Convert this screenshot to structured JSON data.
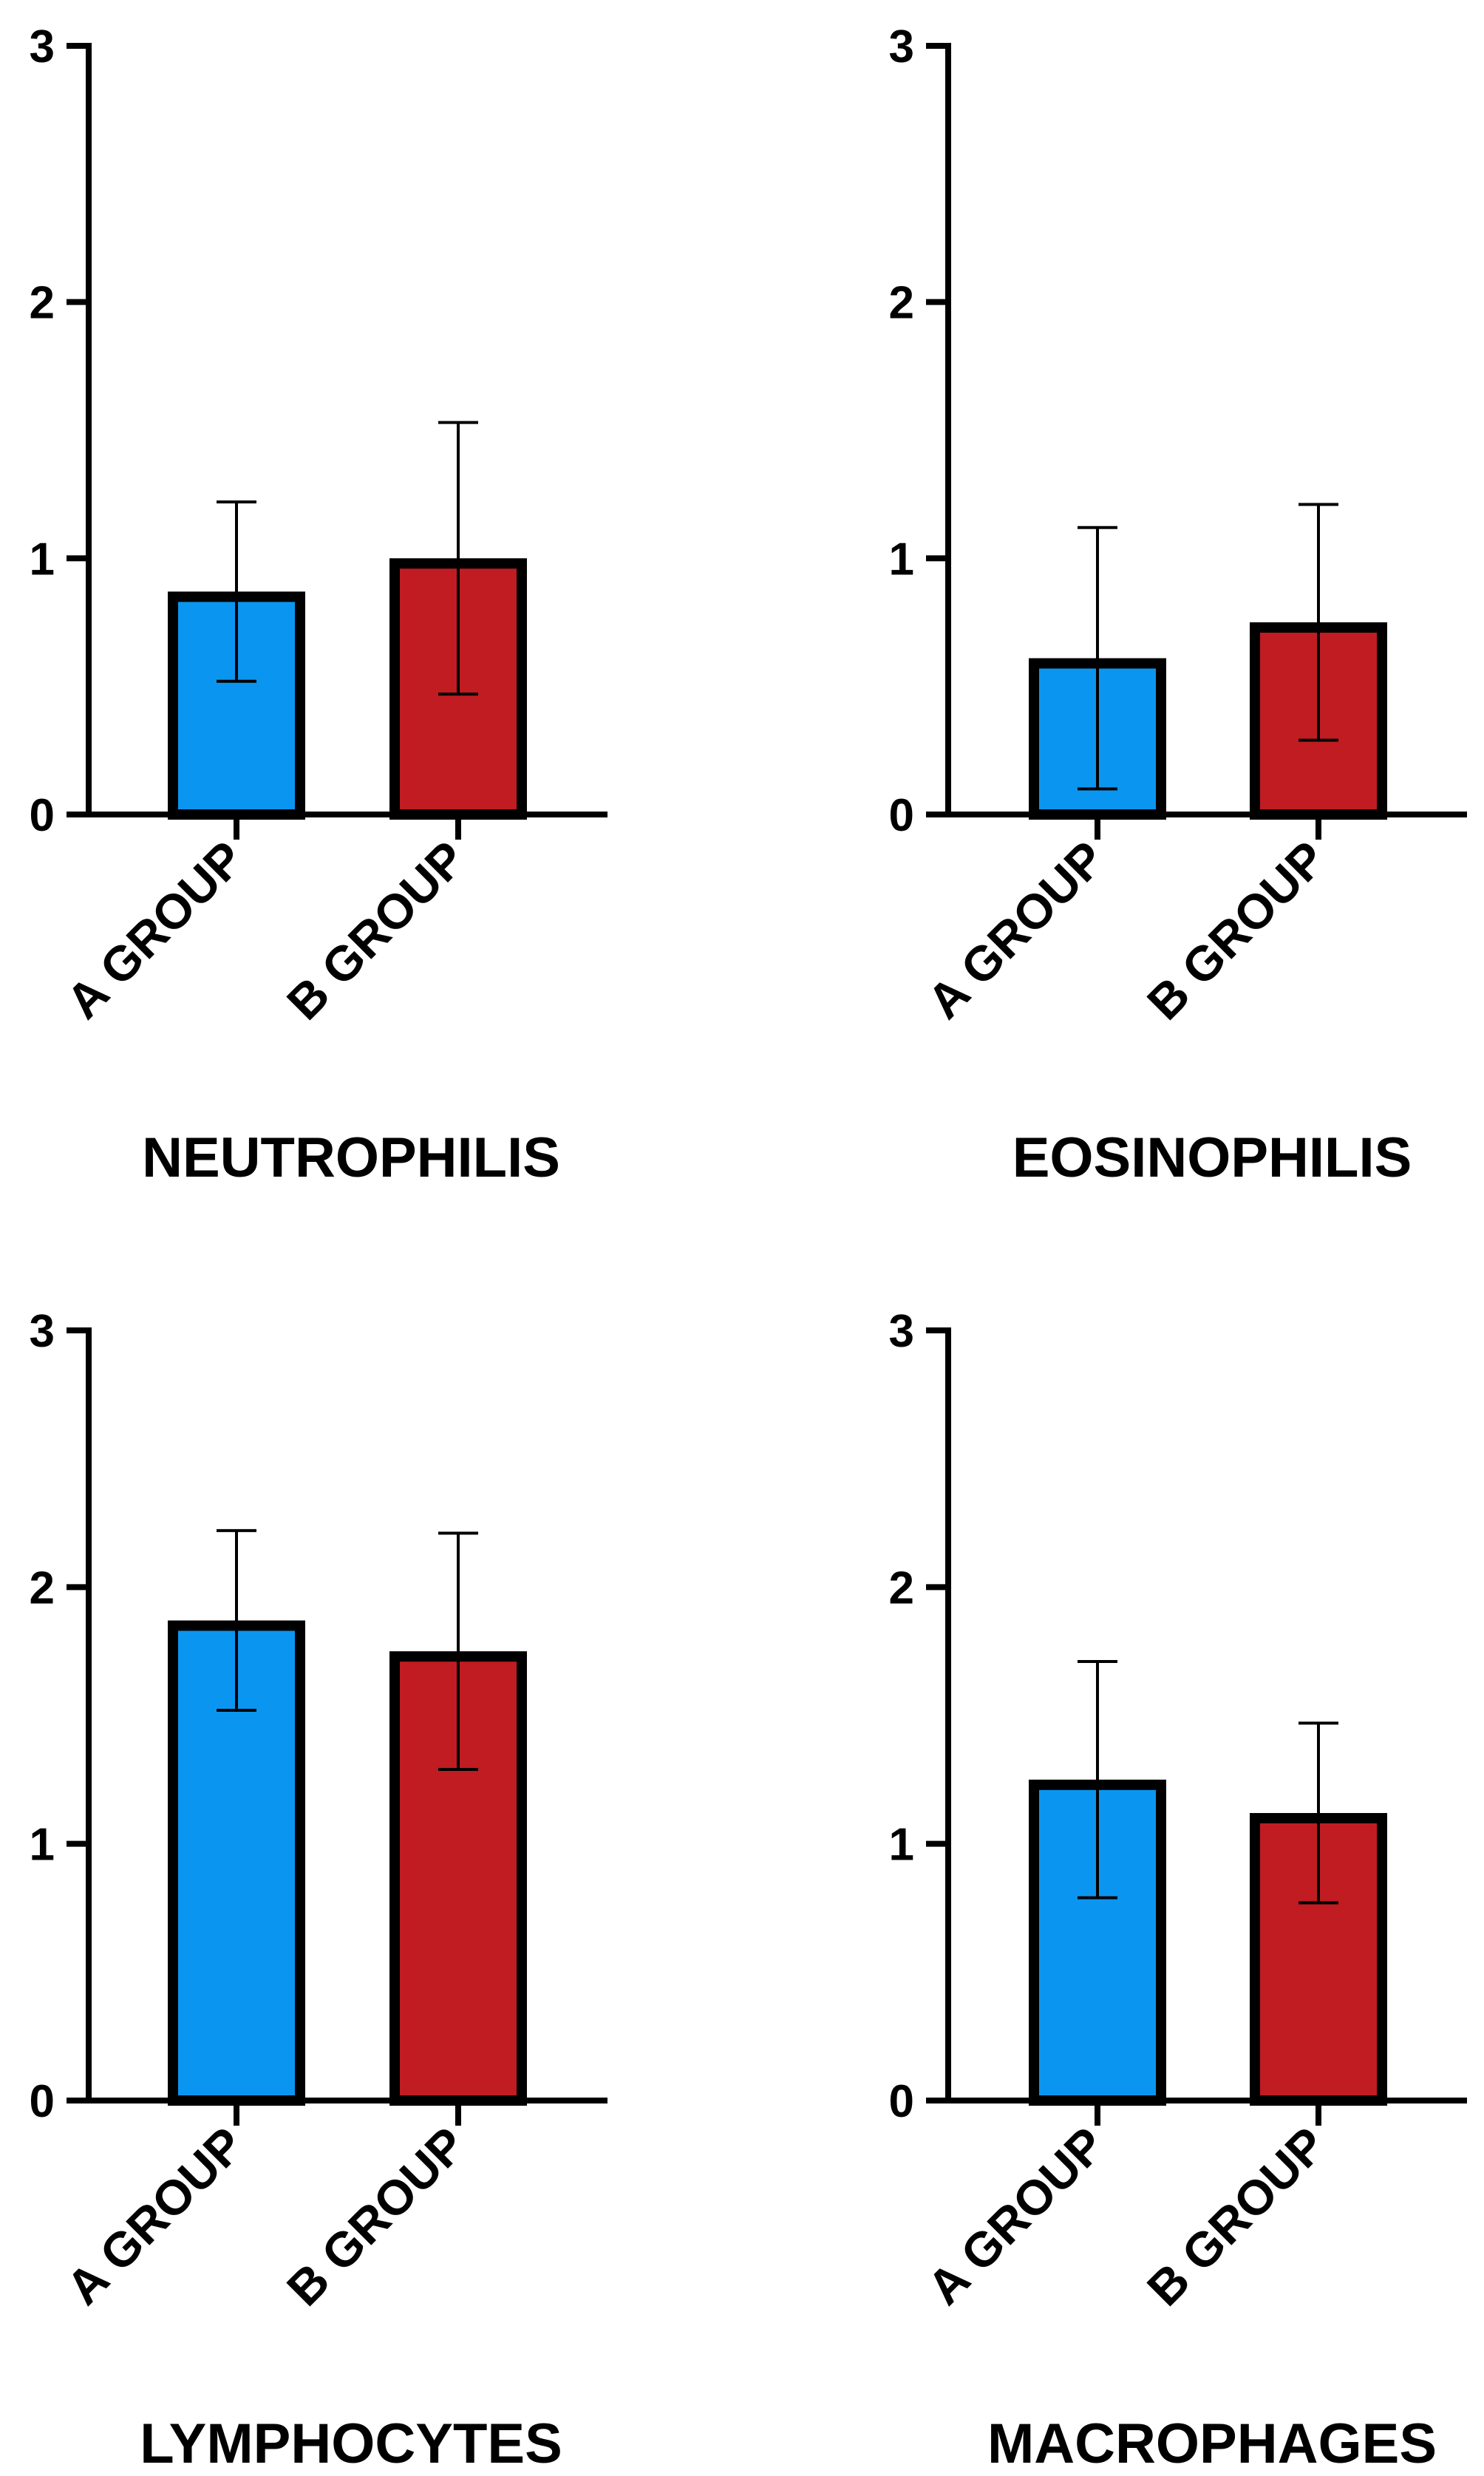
{
  "colors": {
    "a_group": "#0A96F0",
    "b_group": "#C01C22",
    "outline": "#000000",
    "background": "#ffffff"
  },
  "chart_data": [
    {
      "type": "bar",
      "title": "NEUTROPHILIS",
      "categories": [
        "A GROUP",
        "B GROUP"
      ],
      "values": [
        0.87,
        1.0
      ],
      "error_low": [
        0.52,
        0.47
      ],
      "error_high": [
        1.22,
        1.53
      ],
      "ylim": [
        0,
        3
      ],
      "yticks": [
        "0",
        "1",
        "2",
        "3"
      ],
      "xlabel": "",
      "ylabel": ""
    },
    {
      "type": "bar",
      "title": "EOSINOPHILIS",
      "categories": [
        "A GROUP",
        "B GROUP"
      ],
      "values": [
        0.61,
        0.75
      ],
      "error_low": [
        0.1,
        0.29
      ],
      "error_high": [
        1.12,
        1.21
      ],
      "ylim": [
        0,
        3
      ],
      "yticks": [
        "0",
        "1",
        "2",
        "3"
      ],
      "xlabel": "",
      "ylabel": ""
    },
    {
      "type": "bar",
      "title": "LYMPHOCYTES",
      "categories": [
        "A GROUP",
        "B GROUP"
      ],
      "values": [
        1.87,
        1.75
      ],
      "error_low": [
        1.52,
        1.29
      ],
      "error_high": [
        2.22,
        2.21
      ],
      "ylim": [
        0,
        3
      ],
      "yticks": [
        "0",
        "1",
        "2",
        "3"
      ],
      "xlabel": "",
      "ylabel": ""
    },
    {
      "type": "bar",
      "title": "MACROPHAGES",
      "categories": [
        "A GROUP",
        "B GROUP"
      ],
      "values": [
        1.25,
        1.12
      ],
      "error_low": [
        0.79,
        0.77
      ],
      "error_high": [
        1.71,
        1.47
      ],
      "ylim": [
        0,
        3
      ],
      "yticks": [
        "0",
        "1",
        "2",
        "3"
      ],
      "xlabel": "",
      "ylabel": ""
    }
  ]
}
